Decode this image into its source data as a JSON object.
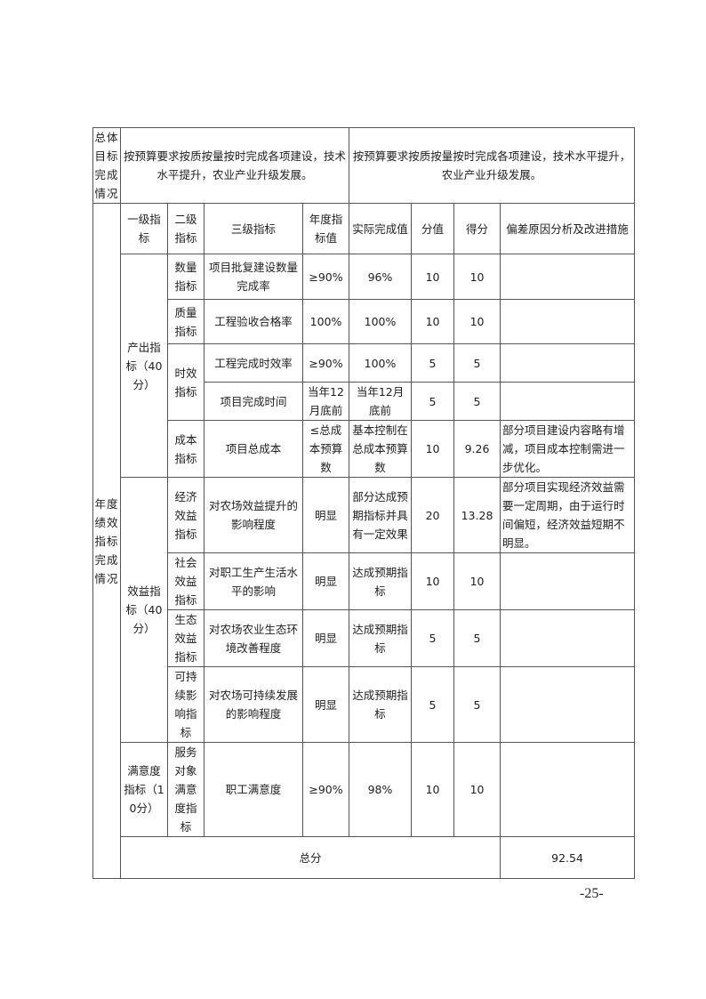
{
  "overall": {
    "label": "总体目标完成情况",
    "planned": "按预算要求按质按量按时完成各项建设，技术水平提升，农业产业升级发展。",
    "actual": "按预算要求按质按量按时完成各项建设，技术水平提升，农业产业升级发展。"
  },
  "annual_label": "年度绩效指标完成情况",
  "headers": [
    "一级指标",
    "二级指标",
    "三级指标",
    "年度指标值",
    "实际完成值",
    "分值",
    "得分",
    "偏差原因分析及改进措施"
  ],
  "groups": {
    "output": {
      "label": "产出指标（40分）",
      "quantity": {
        "level2": "数量指标",
        "level3": "项目批复建设数量完成率",
        "target": "≥90%",
        "actual": "96%",
        "weight": "10",
        "score": "10",
        "note": ""
      },
      "quality": {
        "level2": "质量指标",
        "level3": "工程验收合格率",
        "target": "100%",
        "actual": "100%",
        "weight": "10",
        "score": "10",
        "note": ""
      },
      "timeliness_label": "时效指标",
      "timeliness_rate": {
        "level3": "工程完成时效率",
        "target": "≥90%",
        "actual": "100%",
        "weight": "5",
        "score": "5",
        "note": ""
      },
      "timeliness_time": {
        "level3": "项目完成时间",
        "target": "当年12月底前",
        "actual": "当年12月底前",
        "weight": "5",
        "score": "5",
        "note": ""
      },
      "cost": {
        "level2": "成本指标",
        "level3": "项目总成本",
        "target": "≤总成本预算数",
        "actual": "基本控制在总成本预算数",
        "weight": "10",
        "score": "9.26",
        "note": "部分项目建设内容略有增减，项目成本控制需进一步优化。"
      }
    },
    "benefit": {
      "label": "效益指标（40分）",
      "economic": {
        "level2": "经济效益指标",
        "level3": "对农场效益提升的影响程度",
        "target": "明显",
        "actual": "部分达成预期指标并具有一定效果",
        "weight": "20",
        "score": "13.28",
        "note": "部分项目实现经济效益需要一定周期，由于运行时间偏短，经济效益短期不明显。"
      },
      "social": {
        "level2": "社会效益指标",
        "level3": "对职工生产生活水平的影响",
        "target": "明显",
        "actual": "达成预期指标",
        "weight": "10",
        "score": "10",
        "note": ""
      },
      "ecological": {
        "level2": "生态效益指标",
        "level3": "对农场农业生态环境改善程度",
        "target": "明显",
        "actual": "达成预期指标",
        "weight": "5",
        "score": "5",
        "note": ""
      },
      "sustainable": {
        "level2": "可持续影响指标",
        "level3": "对农场可持续发展的影响程度",
        "target": "明显",
        "actual": "达成预期指标",
        "weight": "5",
        "score": "5",
        "note": ""
      }
    },
    "satisfaction": {
      "label": "满意度指标（10分）",
      "service": {
        "level2": "服务对象满意度指标",
        "level3": "职工满意度",
        "target": "≥90%",
        "actual": "98%",
        "weight": "10",
        "score": "10",
        "note": ""
      }
    }
  },
  "total": {
    "label": "总分",
    "score": "92.54",
    "note": ""
  },
  "page_number": "-25-"
}
